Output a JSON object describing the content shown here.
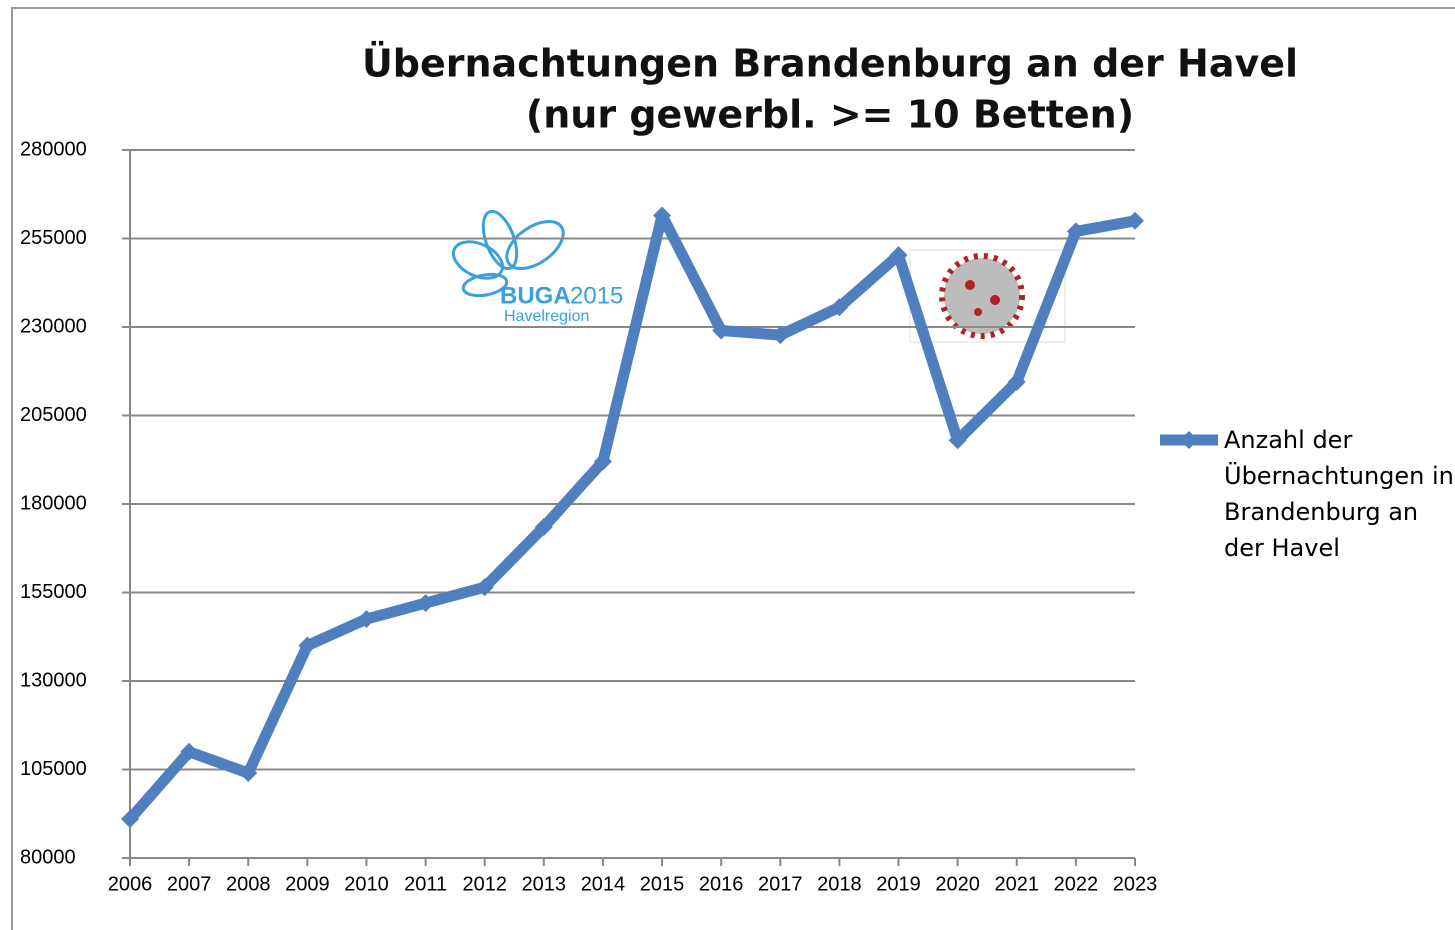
{
  "chart_data": {
    "type": "line",
    "title": "Übernachtungen Brandenburg an der Havel",
    "subtitle": "(nur gewerbl. >= 10 Betten)",
    "categories": [
      "2006",
      "2007",
      "2008",
      "2009",
      "2010",
      "2011",
      "2012",
      "2013",
      "2014",
      "2015",
      "2016",
      "2017",
      "2018",
      "2019",
      "2020",
      "2021",
      "2022",
      "2023"
    ],
    "series": [
      {
        "name": "Anzahl der Übernachtungen in Brandenburg an der Havel",
        "color": "#4f7fbe",
        "values": [
          91000,
          110000,
          104000,
          140000,
          147500,
          152000,
          156500,
          173500,
          192000,
          261500,
          229000,
          227700,
          235600,
          250300,
          198000,
          214500,
          257000,
          260000
        ]
      }
    ],
    "ylim": [
      80000,
      280000
    ],
    "yticks": [
      80000,
      105000,
      130000,
      155000,
      180000,
      205000,
      230000,
      255000,
      280000
    ],
    "grid": true,
    "legend": "right",
    "annotations": [
      "BUGA",
      "2015",
      "Havelregion"
    ]
  }
}
